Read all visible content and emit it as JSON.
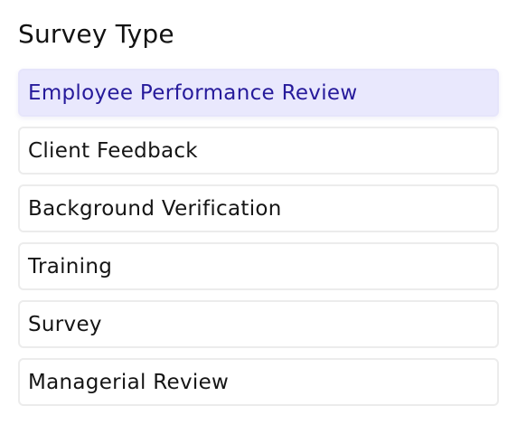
{
  "title": "Survey Type",
  "colors": {
    "selected_background": "#e9e8fd",
    "selected_text": "#261a9b",
    "option_border": "#ececec"
  },
  "options": [
    {
      "label": "Employee Performance Review",
      "selected": true
    },
    {
      "label": "Client Feedback",
      "selected": false
    },
    {
      "label": "Background Verification",
      "selected": false
    },
    {
      "label": "Training",
      "selected": false
    },
    {
      "label": "Survey",
      "selected": false
    },
    {
      "label": "Managerial Review",
      "selected": false
    }
  ]
}
